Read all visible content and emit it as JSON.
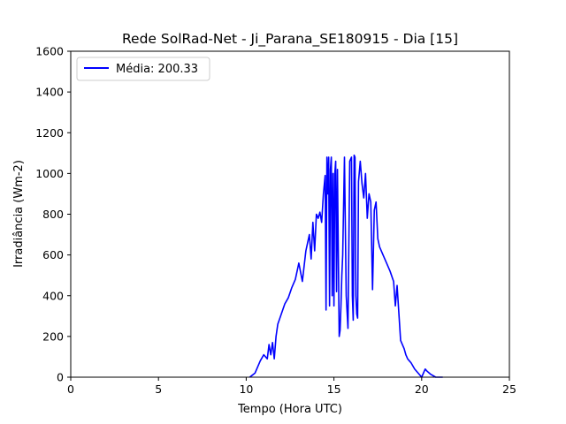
{
  "chart_data": {
    "type": "line",
    "title": "Rede SolRad-Net - Ji_Parana_SE180915 - Dia [15]",
    "xlabel": "Tempo (Hora UTC)",
    "ylabel": "Irradiância (Wm-2)",
    "xlim": [
      0,
      25
    ],
    "ylim": [
      0,
      1600
    ],
    "xticks": [
      0,
      5,
      10,
      15,
      20,
      25
    ],
    "yticks": [
      0,
      200,
      400,
      600,
      800,
      1000,
      1200,
      1400,
      1600
    ],
    "grid": false,
    "legend_position": "top-left",
    "series": [
      {
        "name": "Média: 200.33",
        "color": "#0000ff",
        "x": [
          10.2,
          10.5,
          10.8,
          11.0,
          11.2,
          11.3,
          11.4,
          11.5,
          11.6,
          11.7,
          11.8,
          12.0,
          12.2,
          12.4,
          12.6,
          12.8,
          13.0,
          13.2,
          13.4,
          13.6,
          13.7,
          13.8,
          13.9,
          14.0,
          14.1,
          14.2,
          14.3,
          14.4,
          14.5,
          14.55,
          14.6,
          14.65,
          14.7,
          14.75,
          14.8,
          14.85,
          14.9,
          14.95,
          15.0,
          15.05,
          15.1,
          15.15,
          15.2,
          15.3,
          15.35,
          15.4,
          15.45,
          15.5,
          15.6,
          15.7,
          15.8,
          15.9,
          16.0,
          16.05,
          16.1,
          16.15,
          16.2,
          16.25,
          16.3,
          16.35,
          16.4,
          16.5,
          16.6,
          16.7,
          16.8,
          16.9,
          17.0,
          17.1,
          17.2,
          17.3,
          17.35,
          17.4,
          17.5,
          17.6,
          17.8,
          18.0,
          18.2,
          18.4,
          18.5,
          18.6,
          18.8,
          19.0,
          19.1,
          19.2,
          19.3,
          19.4,
          19.6,
          19.8,
          20.0,
          20.2,
          20.3,
          20.5,
          20.8,
          21.0,
          21.2
        ],
        "y": [
          0,
          20,
          80,
          110,
          90,
          160,
          110,
          170,
          90,
          200,
          260,
          310,
          360,
          390,
          440,
          480,
          560,
          470,
          620,
          700,
          580,
          760,
          620,
          800,
          780,
          810,
          760,
          900,
          990,
          330,
          1080,
          900,
          1080,
          350,
          1020,
          1080,
          400,
          1000,
          350,
          1000,
          1060,
          420,
          1020,
          200,
          230,
          350,
          500,
          600,
          1080,
          400,
          240,
          1060,
          1080,
          400,
          280,
          1090,
          1080,
          400,
          310,
          290,
          960,
          1060,
          950,
          880,
          1000,
          780,
          900,
          860,
          430,
          820,
          840,
          860,
          680,
          640,
          600,
          560,
          520,
          470,
          350,
          450,
          180,
          140,
          110,
          90,
          80,
          70,
          40,
          20,
          0,
          40,
          30,
          15,
          0,
          0,
          0
        ]
      }
    ]
  }
}
